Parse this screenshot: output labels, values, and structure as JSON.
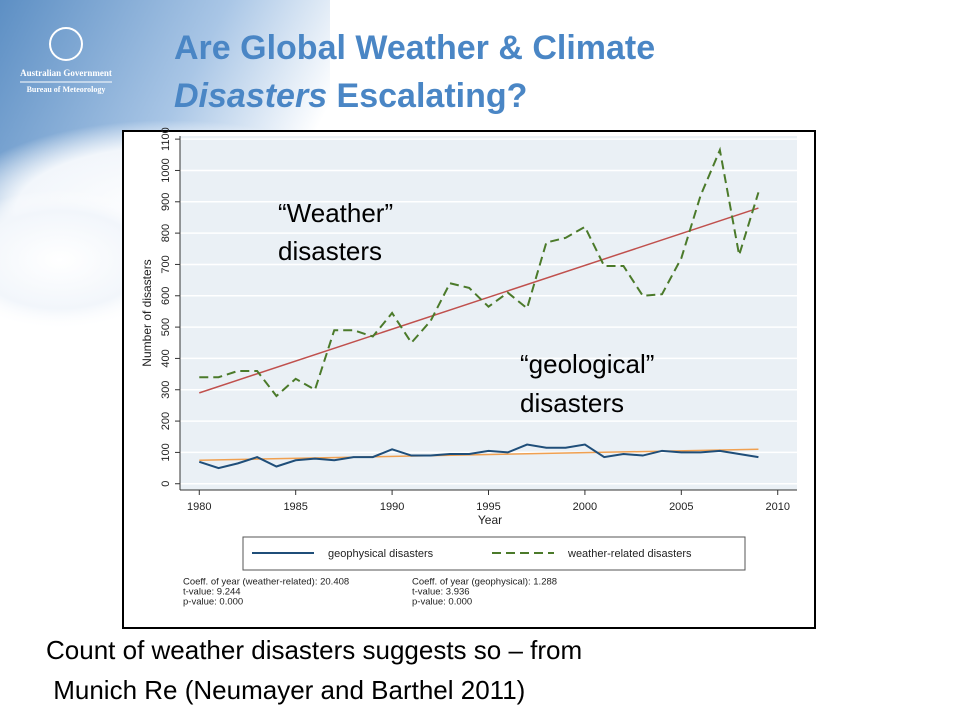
{
  "logo": {
    "line1": "Australian Government",
    "line2": "Bureau of Meteorology"
  },
  "title": {
    "line1": "Are Global Weather & Climate",
    "line2_italic": "Disasters",
    "line2_rest": " Escalating?"
  },
  "chart_data": {
    "type": "line",
    "x": [
      1980,
      1981,
      1982,
      1983,
      1984,
      1985,
      1986,
      1987,
      1988,
      1989,
      1990,
      1991,
      1992,
      1993,
      1994,
      1995,
      1996,
      1997,
      1998,
      1999,
      2000,
      2001,
      2002,
      2003,
      2004,
      2005,
      2006,
      2007,
      2008,
      2009
    ],
    "series": [
      {
        "name": "geophysical disasters",
        "color": "#1f4e79",
        "dash": false,
        "values": [
          70,
          50,
          65,
          85,
          55,
          75,
          80,
          75,
          85,
          85,
          110,
          90,
          90,
          95,
          95,
          105,
          100,
          125,
          115,
          115,
          125,
          85,
          95,
          90,
          105,
          100,
          100,
          105,
          95,
          85
        ]
      },
      {
        "name": "weather-related disasters",
        "color": "#4b7a2a",
        "dash": true,
        "values": [
          340,
          340,
          360,
          360,
          280,
          335,
          300,
          490,
          490,
          470,
          545,
          450,
          520,
          640,
          625,
          565,
          610,
          560,
          770,
          785,
          820,
          695,
          695,
          600,
          605,
          720,
          920,
          1065,
          730,
          930
        ]
      }
    ],
    "trend_lines": [
      {
        "color": "#c0504d",
        "x": [
          1980,
          2009
        ],
        "values": [
          290,
          880
        ]
      },
      {
        "color": "#f0a050",
        "x": [
          1980,
          2009
        ],
        "values": [
          75,
          110
        ]
      }
    ],
    "xlim": [
      1979,
      2011
    ],
    "ylim": [
      -20,
      1110
    ],
    "xticks": [
      1980,
      1985,
      1990,
      1995,
      2000,
      2005,
      2010
    ],
    "yticks": [
      0,
      100,
      200,
      300,
      400,
      500,
      600,
      700,
      800,
      900,
      1000,
      1100
    ],
    "x_label": "Year",
    "y_label": "Number of disasters",
    "grid": true,
    "annotations": [
      {
        "line1": "“Weather”",
        "line2": "disasters"
      },
      {
        "line1": "“geological”",
        "line2": "disasters"
      }
    ],
    "stats": {
      "left": [
        "Coeff. of year (weather-related): 20.408",
        "t-value: 9.244",
        "p-value: 0.000"
      ],
      "right": [
        "Coeff. of year (geophysical): 1.288",
        "t-value: 3.936",
        "p-value: 0.000"
      ]
    }
  },
  "caption": {
    "line1": "Count of weather disasters suggests so – from",
    "line2": " Munich Re (Neumayer and Barthel 2011)"
  }
}
